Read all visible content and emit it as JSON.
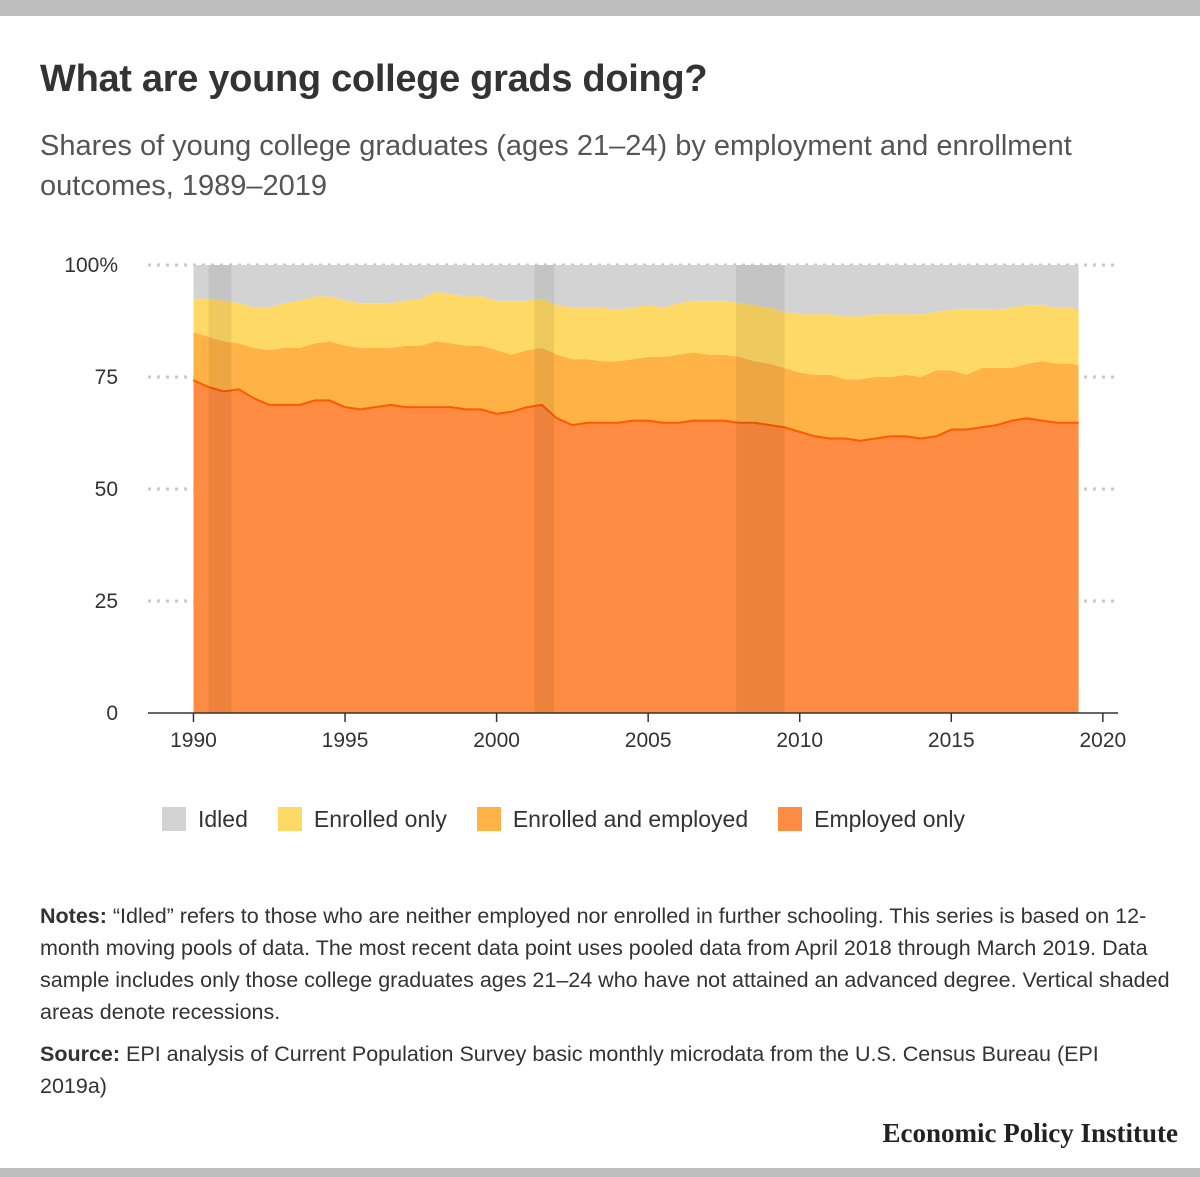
{
  "header": {
    "title": "What are young college grads doing?",
    "subtitle": "Shares of young college graduates (ages 21–24) by employment and enrollment outcomes, 1989–2019"
  },
  "legend": {
    "items": [
      {
        "label": "Idled",
        "color": "#d3d3d3"
      },
      {
        "label": "Enrolled only",
        "color": "#ffd966"
      },
      {
        "label": "Enrolled and employed",
        "color": "#ffb347"
      },
      {
        "label": "Employed only",
        "color": "#ff8c42"
      }
    ]
  },
  "notes": {
    "label": "Notes:",
    "text": " “Idled” refers to those who are neither employed nor enrolled in further schooling. This series is based on 12-month moving pools of data. The most recent data point uses pooled data from April 2018 through March 2019. Data sample includes only those college graduates ages 21–24 who have not attained an advanced degree. Vertical shaded areas denote recessions."
  },
  "source": {
    "label": "Source:",
    "text": " EPI analysis of Current Population Survey basic monthly microdata from the U.S. Census Bureau (EPI 2019a)"
  },
  "brand": "Economic Policy Institute",
  "chart_data": {
    "type": "area",
    "stacked": true,
    "title": "What are young college grads doing?",
    "subtitle": "Shares of young college graduates (ages 21–24) by employment and enrollment outcomes, 1989–2019",
    "xlabel": "",
    "ylabel": "",
    "xlim": [
      1988.5,
      2020.5
    ],
    "ylim": [
      0,
      100
    ],
    "x_ticks": [
      1990,
      1995,
      2000,
      2005,
      2010,
      2015,
      2020
    ],
    "y_ticks": [
      0,
      25,
      50,
      75,
      100
    ],
    "y_tick_labels": [
      "0",
      "25",
      "50",
      "75",
      "100%"
    ],
    "grid": "horizontal dotted",
    "legend_position": "bottom",
    "recessions": [
      [
        1990.5,
        1991.25
      ],
      [
        2001.25,
        2001.9
      ],
      [
        2007.9,
        2009.5
      ]
    ],
    "x": [
      1990,
      1990.5,
      1991,
      1991.5,
      1992,
      1992.5,
      1993,
      1993.5,
      1994,
      1994.5,
      1995,
      1995.5,
      1996,
      1996.5,
      1997,
      1997.5,
      1998,
      1998.5,
      1999,
      1999.5,
      2000,
      2000.5,
      2001,
      2001.5,
      2002,
      2002.5,
      2003,
      2003.5,
      2004,
      2004.5,
      2005,
      2005.5,
      2006,
      2006.5,
      2007,
      2007.5,
      2008,
      2008.5,
      2009,
      2009.5,
      2010,
      2010.5,
      2011,
      2011.5,
      2012,
      2012.5,
      2013,
      2013.5,
      2014,
      2014.5,
      2015,
      2015.5,
      2016,
      2016.5,
      2017,
      2017.5,
      2018,
      2018.5,
      2019,
      2019.2
    ],
    "series": [
      {
        "name": "Employed only",
        "color": "#ff8c42",
        "line_color": "#ff5a00",
        "values": [
          74.5,
          73.0,
          72.0,
          72.5,
          70.5,
          69.0,
          69.0,
          69.0,
          70.0,
          70.0,
          68.5,
          68.0,
          68.5,
          69.0,
          68.5,
          68.5,
          68.5,
          68.5,
          68.0,
          68.0,
          67.0,
          67.5,
          68.5,
          69.0,
          66.0,
          64.5,
          65.0,
          65.0,
          65.0,
          65.5,
          65.5,
          65.0,
          65.0,
          65.5,
          65.5,
          65.5,
          65.0,
          65.0,
          64.5,
          64.0,
          63.0,
          62.0,
          61.5,
          61.5,
          61.0,
          61.5,
          62.0,
          62.0,
          61.5,
          62.0,
          63.5,
          63.5,
          64.0,
          64.5,
          65.5,
          66.0,
          65.5,
          65.0,
          65.0,
          65.0
        ]
      },
      {
        "name": "Enrolled and employed",
        "color": "#ffb347",
        "values": [
          10.5,
          11.0,
          11.0,
          10.0,
          11.0,
          12.0,
          12.5,
          12.5,
          12.5,
          13.0,
          13.5,
          13.5,
          13.0,
          12.5,
          13.5,
          13.5,
          14.5,
          14.0,
          14.0,
          14.0,
          14.0,
          12.5,
          12.5,
          12.5,
          14.0,
          14.5,
          14.0,
          13.5,
          13.5,
          13.5,
          14.0,
          14.5,
          15.0,
          15.0,
          14.5,
          14.5,
          14.5,
          13.5,
          13.5,
          13.0,
          13.0,
          13.5,
          14.0,
          13.0,
          13.5,
          13.5,
          13.0,
          13.5,
          13.5,
          14.5,
          13.0,
          12.0,
          13.0,
          12.5,
          11.5,
          12.0,
          13.0,
          13.0,
          13.0,
          12.5
        ]
      },
      {
        "name": "Enrolled only",
        "color": "#ffd966",
        "values": [
          7.5,
          8.5,
          9.0,
          9.0,
          9.0,
          9.5,
          10.0,
          10.5,
          10.5,
          10.0,
          10.0,
          10.0,
          10.0,
          10.0,
          10.0,
          10.5,
          11.0,
          11.0,
          11.0,
          11.0,
          11.0,
          12.0,
          11.0,
          11.0,
          11.0,
          11.5,
          11.5,
          12.0,
          11.5,
          11.5,
          11.5,
          11.0,
          11.5,
          11.5,
          12.0,
          12.0,
          12.0,
          12.5,
          12.5,
          12.5,
          13.0,
          13.5,
          13.5,
          14.0,
          14.0,
          14.0,
          14.0,
          13.5,
          14.0,
          13.0,
          13.5,
          14.5,
          13.0,
          13.0,
          13.5,
          13.0,
          12.5,
          12.5,
          12.5,
          12.5
        ]
      },
      {
        "name": "Idled",
        "color": "#d3d3d3",
        "values": [
          7.5,
          7.5,
          8.0,
          8.5,
          9.5,
          9.5,
          8.5,
          8.0,
          7.0,
          7.0,
          8.0,
          8.5,
          8.5,
          8.5,
          8.0,
          7.5,
          6.0,
          6.5,
          7.0,
          7.0,
          8.0,
          8.0,
          8.0,
          7.5,
          9.0,
          9.5,
          9.5,
          9.5,
          10.0,
          9.5,
          9.0,
          9.5,
          8.5,
          8.0,
          8.0,
          8.0,
          8.5,
          9.0,
          9.5,
          10.5,
          11.0,
          11.0,
          11.0,
          11.5,
          11.5,
          11.0,
          11.0,
          11.0,
          11.0,
          10.5,
          10.0,
          10.0,
          10.0,
          10.0,
          9.5,
          9.0,
          9.0,
          9.5,
          9.5,
          10.0
        ]
      }
    ]
  }
}
